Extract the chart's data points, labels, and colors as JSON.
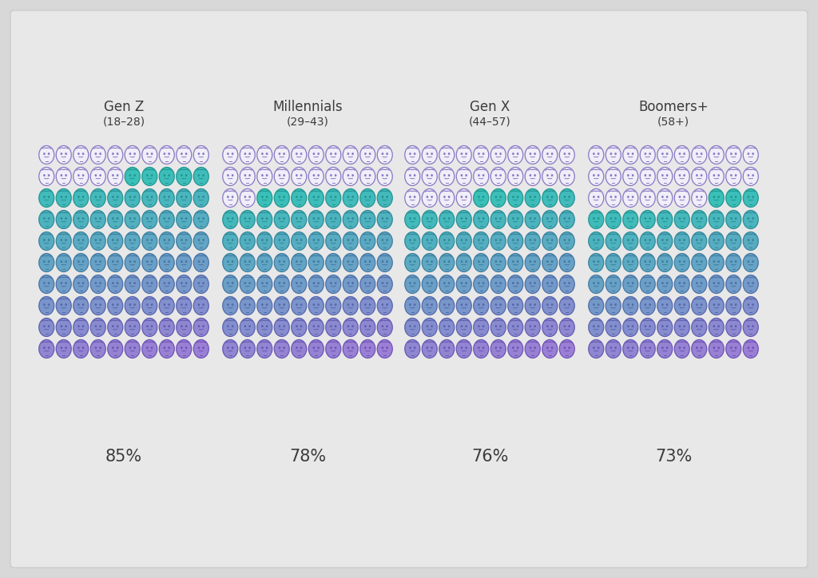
{
  "groups": [
    {
      "name": "Gen Z",
      "age_range": "(18–28)",
      "percentage": 85
    },
    {
      "name": "Millennials",
      "age_range": "(29–43)",
      "percentage": 78
    },
    {
      "name": "Gen X",
      "age_range": "(44–57)",
      "percentage": 76
    },
    {
      "name": "Boomers+",
      "age_range": "(58+)",
      "percentage": 73
    }
  ],
  "rows": 10,
  "cols": 10,
  "teal_color": "#3bbfb9",
  "purple_color": "#9b7fd4",
  "outline_color": "#8878c3",
  "outline_face_bg": "#e8e4f5",
  "edge_teal": "#1e9990",
  "edge_purple": "#7050b8",
  "background_color": "#d8d8d8",
  "text_color": "#3c3c3c",
  "title_fontsize": 12,
  "subtitle_fontsize": 10,
  "pct_fontsize": 15
}
